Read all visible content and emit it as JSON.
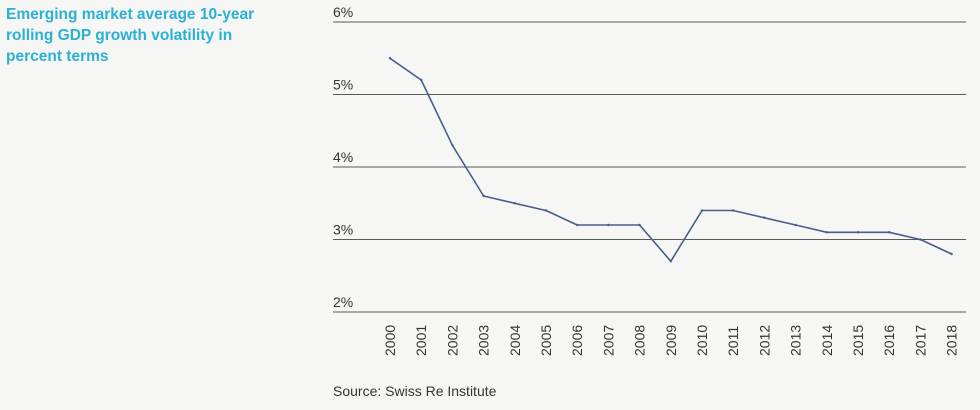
{
  "title_lines": [
    "Emerging market average 10-year",
    "rolling GDP growth volatility in",
    "percent terms"
  ],
  "source": "Source: Swiss Re Institute",
  "colors": {
    "title": "#2bb0d6",
    "line": "#4a5d8c",
    "grid": "#5a5a5a",
    "text": "#333333"
  },
  "chart_data": {
    "type": "line",
    "title": "Emerging market average 10-year rolling GDP growth volatility in percent terms",
    "xlabel": "",
    "ylabel": "",
    "x": [
      "2000",
      "2001",
      "2002",
      "2003",
      "2004",
      "2005",
      "2006",
      "2007",
      "2008",
      "2009",
      "2010",
      "2011",
      "2012",
      "2013",
      "2014",
      "2015",
      "2016",
      "2017",
      "2018"
    ],
    "series": [
      {
        "values": [
          5.5,
          5.2,
          4.3,
          3.6,
          3.5,
          3.4,
          3.2,
          3.2,
          3.2,
          2.7,
          3.4,
          3.4,
          3.3,
          3.2,
          3.1,
          3.1,
          3.1,
          3.0,
          2.8
        ]
      }
    ],
    "ylim": [
      2,
      6
    ],
    "yticks": [
      2,
      3,
      4,
      5,
      6
    ],
    "ytick_labels": [
      "2%",
      "3%",
      "4%",
      "5%",
      "6%"
    ],
    "grid": true,
    "legend": "none"
  }
}
